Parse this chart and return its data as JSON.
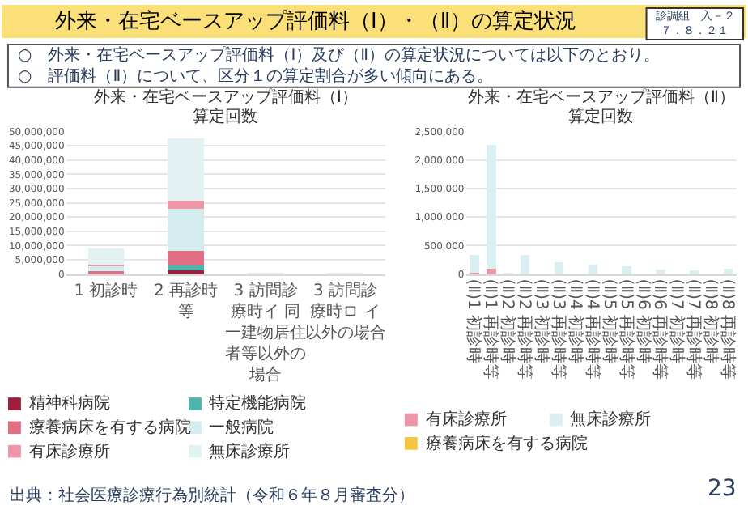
{
  "chart_data": [
    {
      "type": "other",
      "title": "外来・在宅ベースアップ評価料（Ⅰ）・（Ⅱ）の算定状況",
      "annotations": [
        "診調組　入－２",
        "７．８．２１",
        "○　外来・在宅ベースアップ評価料（Ⅰ）及び（Ⅱ）の算定状況については以下のとおり。",
        "○　評価料（Ⅱ）について、区分１の算定割合が多い傾向にある。",
        "出典：社会医療診療行為別統計（令和６年８月審査分）",
        "23"
      ]
    },
    {
      "type": "bar",
      "title": "外来・在宅ベースアップ評価料（Ⅰ）",
      "subtitle": "算定回数",
      "stacked": true,
      "categories": [
        "1 初診時",
        "2 再診時等",
        "3 訪問診療時イ 同一建物居住者等以外の場合",
        "3 訪問診療時ロ イ以外の場合"
      ],
      "series": [
        {
          "name": "精神科病院",
          "color": "#9e1f3b",
          "values": [
            0,
            1200000,
            0,
            0
          ]
        },
        {
          "name": "特定機能病院",
          "color": "#4cb5ae",
          "values": [
            0,
            1900000,
            0,
            0
          ]
        },
        {
          "name": "療養病床を有する病院",
          "color": "#e16f85",
          "values": [
            900000,
            5100000,
            0,
            0
          ]
        },
        {
          "name": "一般病院",
          "color": "#d5ecee",
          "values": [
            2200000,
            14800000,
            0,
            0
          ]
        },
        {
          "name": "有床診療所",
          "color": "#ec96a8",
          "values": [
            300000,
            2600000,
            0,
            0
          ]
        },
        {
          "name": "無床診療所",
          "color": "#e2f2f3",
          "values": [
            5600000,
            21900000,
            200000,
            300000
          ]
        }
      ],
      "ylim": [
        0,
        50000000
      ],
      "yticks": [
        {
          "value": 0,
          "label": "0"
        },
        {
          "value": 5000000,
          "label": "5,000,000"
        },
        {
          "value": 10000000,
          "label": "10,000,000"
        },
        {
          "value": 15000000,
          "label": "15,000,000"
        },
        {
          "value": 20000000,
          "label": "20,000,000"
        },
        {
          "value": 25000000,
          "label": "25,000,000"
        },
        {
          "value": 30000000,
          "label": "30,000,000"
        },
        {
          "value": 35000000,
          "label": "35,000,000"
        },
        {
          "value": 40000000,
          "label": "40,000,000"
        },
        {
          "value": 45000000,
          "label": "45,000,000"
        },
        {
          "value": 50000000,
          "label": "50,000,000"
        }
      ],
      "grid": "y",
      "legend": "bottom"
    },
    {
      "type": "bar",
      "title": "外来・在宅ベースアップ評価料（Ⅱ）",
      "subtitle": "算定回数",
      "stacked": true,
      "categories": [
        "(Ⅱ)1 初診時",
        "(Ⅱ)1 再診時等",
        "(Ⅱ)2 初診時",
        "(Ⅱ)2 再診時等",
        "(Ⅱ)3 初診時",
        "(Ⅱ)3 再診時等",
        "(Ⅱ)4 初診時",
        "(Ⅱ)4 再診時等",
        "(Ⅱ)5 初診時",
        "(Ⅱ)5 再診時等",
        "(Ⅱ)6 初診時",
        "(Ⅱ)6 再診時等",
        "(Ⅱ)7 初診時",
        "(Ⅱ)7 再診時等",
        "(Ⅱ)8 初診時",
        "(Ⅱ)8 再診時等"
      ],
      "series": [
        {
          "name": "有床診療所",
          "color": "#ec96a8",
          "values": [
            20000,
            90000,
            0,
            null,
            0,
            null,
            0,
            0,
            0,
            0,
            0,
            0,
            0,
            0,
            0,
            0
          ]
        },
        {
          "name": "無床診療所",
          "color": "#d9eff1",
          "values": [
            320000,
            2180000,
            20000,
            330000,
            0,
            200000,
            0,
            170000,
            0,
            130000,
            0,
            80000,
            0,
            60000,
            0,
            100000
          ]
        },
        {
          "name": "療養病床を有する病院",
          "color": "#f5c542",
          "values": [
            0,
            0,
            0,
            0,
            0,
            0,
            0,
            0,
            0,
            0,
            0,
            0,
            0,
            0,
            0,
            0
          ]
        }
      ],
      "ylim": [
        0,
        2500000
      ],
      "yticks": [
        {
          "value": 0,
          "label": "0"
        },
        {
          "value": 500000,
          "label": "500,000"
        },
        {
          "value": 1000000,
          "label": "1,000,000"
        },
        {
          "value": 1500000,
          "label": "1,500,000"
        },
        {
          "value": 2000000,
          "label": "2,000,000"
        },
        {
          "value": 2500000,
          "label": "2,500,000"
        }
      ],
      "grid": "y",
      "legend": "bottom"
    }
  ]
}
